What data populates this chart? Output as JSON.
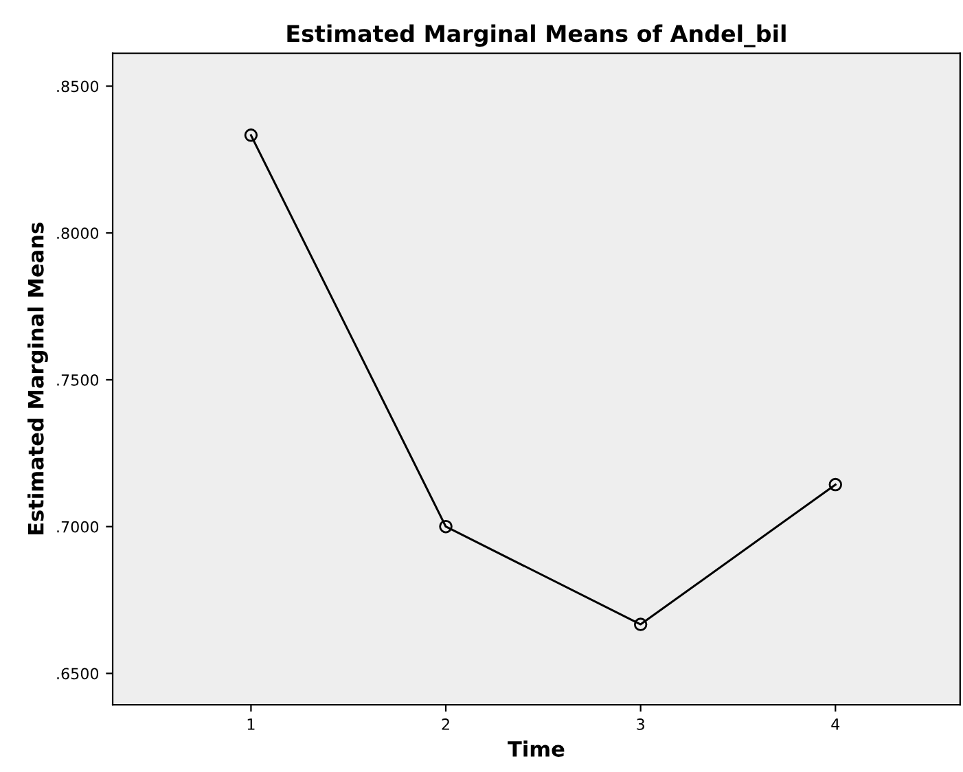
{
  "chart_data": {
    "type": "line",
    "title": "Estimated Marginal Means of Andel_bil",
    "xlabel": "Time",
    "ylabel": "Estimated Marginal Means",
    "categories": [
      "1",
      "2",
      "3",
      "4"
    ],
    "series": [
      {
        "color": "#000000",
        "values": [
          0.8333,
          0.7,
          0.6667,
          0.7143
        ]
      }
    ],
    "ylim": [
      0.6393,
      0.8612
    ],
    "yticks": [
      {
        "value": 0.65,
        "label": ".6500"
      },
      {
        "value": 0.7,
        "label": ".7000"
      },
      {
        "value": 0.75,
        "label": ".7500"
      },
      {
        "value": 0.8,
        "label": ".8000"
      },
      {
        "value": 0.85,
        "label": ".8500"
      }
    ],
    "marker": "circle",
    "line_style": "solid",
    "grid": false,
    "legend": false
  }
}
